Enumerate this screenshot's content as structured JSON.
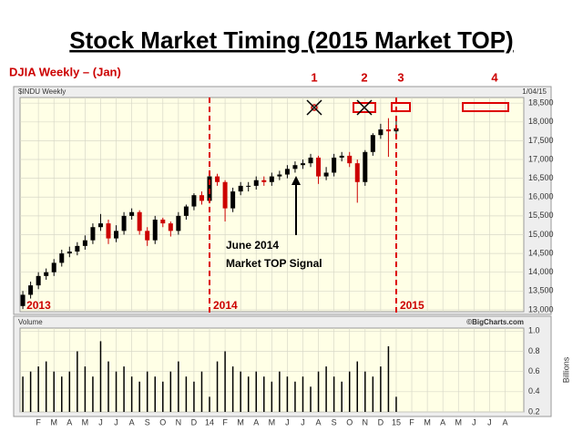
{
  "chart_data": [
    {
      "type": "candlestick",
      "title": "Stock Market Timing (2015 Market TOP)",
      "subtitle": "DJIA Weekly – (Jan)",
      "symbol": "$INDU Weekly",
      "date": "1/04/15",
      "signals": [
        "1",
        "2",
        "3",
        "4"
      ],
      "annotation": [
        "June 2014",
        "Market TOP Signal"
      ],
      "year_labels": [
        {
          "value": 0,
          "label": "2013"
        },
        {
          "value": 12,
          "label": "2014"
        },
        {
          "value": 24,
          "label": "2015"
        }
      ],
      "dashed_lines": [
        12,
        24
      ],
      "up_color": "#000000",
      "down_color": "#cc0000",
      "line_color": "#dd0000",
      "x": [
        0,
        0.5,
        1,
        1.5,
        2,
        2.5,
        3,
        3.5,
        4,
        4.5,
        5,
        5.5,
        6,
        6.5,
        7,
        7.5,
        8,
        8.5,
        9,
        9.5,
        10,
        10.5,
        11,
        11.5,
        12,
        12.5,
        13,
        13.5,
        14,
        14.5,
        15,
        15.5,
        16,
        16.5,
        17,
        17.5,
        18,
        18.5,
        19,
        19.5,
        20,
        20.5,
        21,
        21.5,
        22,
        22.5,
        23,
        23.5,
        24
      ],
      "open": [
        13100,
        13400,
        13650,
        13900,
        14000,
        14250,
        14500,
        14550,
        14700,
        14850,
        15200,
        15300,
        14900,
        15100,
        15500,
        15600,
        15100,
        14850,
        15400,
        15300,
        15100,
        15500,
        15750,
        16050,
        15900,
        16550,
        16400,
        15700,
        16150,
        16300,
        16300,
        16450,
        16400,
        16550,
        16600,
        16750,
        16850,
        16900,
        17050,
        16550,
        16650,
        17050,
        17100,
        16900,
        16400,
        17200,
        17650,
        17800,
        17750
      ],
      "high": [
        13500,
        13750,
        14000,
        14100,
        14350,
        14600,
        14680,
        14800,
        14980,
        15300,
        15550,
        15400,
        15250,
        15600,
        15700,
        15650,
        15200,
        15500,
        15450,
        15350,
        15600,
        15800,
        16100,
        16150,
        16600,
        16620,
        16450,
        16250,
        16400,
        16400,
        16550,
        16550,
        16650,
        16700,
        16850,
        16950,
        17000,
        17150,
        17100,
        16800,
        17150,
        17200,
        17200,
        17000,
        17250,
        17700,
        17950,
        18100,
        18050
      ],
      "low": [
        13020,
        13300,
        13550,
        13800,
        13900,
        14150,
        14400,
        14450,
        14600,
        14750,
        15100,
        14750,
        14800,
        15000,
        15400,
        15000,
        14700,
        14750,
        15200,
        14950,
        15000,
        15400,
        15650,
        15800,
        15850,
        16300,
        15350,
        15600,
        16050,
        16150,
        16200,
        16300,
        16300,
        16450,
        16500,
        16650,
        16750,
        16800,
        16350,
        16450,
        16550,
        16950,
        16800,
        15850,
        16300,
        17100,
        17550,
        17070,
        17650
      ],
      "close": [
        13400,
        13650,
        13900,
        14000,
        14250,
        14500,
        14550,
        14700,
        14850,
        15200,
        15300,
        14900,
        15100,
        15500,
        15600,
        15100,
        14850,
        15400,
        15300,
        15100,
        15500,
        15750,
        16050,
        15900,
        16550,
        16400,
        15700,
        16150,
        16300,
        16300,
        16450,
        16400,
        16550,
        16600,
        16750,
        16850,
        16900,
        17050,
        16550,
        16650,
        17050,
        17100,
        16900,
        16400,
        17200,
        17650,
        17800,
        17750,
        17830
      ],
      "xlim": [
        -0.18,
        32.2
      ],
      "ylim": [
        12950,
        18650
      ],
      "yticks": [
        {
          "value": 13000,
          "label": "13,000"
        },
        {
          "value": 13500,
          "label": "13,500"
        },
        {
          "value": 14000,
          "label": "14,000"
        },
        {
          "value": 14500,
          "label": "14,500"
        },
        {
          "value": 15000,
          "label": "15,000"
        },
        {
          "value": 15500,
          "label": "15,500"
        },
        {
          "value": 16000,
          "label": "16,000"
        },
        {
          "value": 16500,
          "label": "16,500"
        },
        {
          "value": 17000,
          "label": "17,000"
        },
        {
          "value": 17500,
          "label": "17,500"
        },
        {
          "value": 18000,
          "label": "18,000"
        },
        {
          "value": 18500,
          "label": "18,500"
        }
      ],
      "grid": true
    },
    {
      "type": "bar",
      "label": "Volume",
      "credit": "©BigCharts.com",
      "ylabel": "Billions",
      "color": "#000000",
      "values": [
        0.55,
        0.6,
        0.65,
        0.7,
        0.6,
        0.55,
        0.6,
        0.8,
        0.65,
        0.55,
        0.9,
        0.7,
        0.6,
        0.65,
        0.55,
        0.5,
        0.6,
        0.55,
        0.5,
        0.6,
        0.7,
        0.55,
        0.5,
        0.6,
        0.35,
        0.7,
        0.8,
        0.65,
        0.6,
        0.55,
        0.6,
        0.55,
        0.5,
        0.6,
        0.55,
        0.5,
        0.55,
        0.45,
        0.6,
        0.65,
        0.55,
        0.5,
        0.6,
        0.7,
        0.6,
        0.55,
        0.65,
        0.85,
        0.35
      ],
      "xlim": [
        -0.18,
        32.2
      ],
      "ylim": [
        0.2,
        1.03
      ],
      "yticks": [
        0.2,
        0.4,
        0.6,
        0.8,
        {
          "value": 1,
          "label": "1.0"
        }
      ],
      "xticks": [
        {
          "value": 1,
          "label": "F"
        },
        {
          "value": 2,
          "label": "M"
        },
        {
          "value": 3,
          "label": "A"
        },
        {
          "value": 4,
          "label": "M"
        },
        {
          "value": 5,
          "label": "J"
        },
        {
          "value": 6,
          "label": "J"
        },
        {
          "value": 7,
          "label": "A"
        },
        {
          "value": 8,
          "label": "S"
        },
        {
          "value": 9,
          "label": "O"
        },
        {
          "value": 10,
          "label": "N"
        },
        {
          "value": 11,
          "label": "D"
        },
        {
          "value": 12,
          "label": "14"
        },
        {
          "value": 13,
          "label": "F"
        },
        {
          "value": 14,
          "label": "M"
        },
        {
          "value": 15,
          "label": "A"
        },
        {
          "value": 16,
          "label": "M"
        },
        {
          "value": 17,
          "label": "J"
        },
        {
          "value": 18,
          "label": "J"
        },
        {
          "value": 19,
          "label": "A"
        },
        {
          "value": 20,
          "label": "S"
        },
        {
          "value": 21,
          "label": "O"
        },
        {
          "value": 22,
          "label": "N"
        },
        {
          "value": 23,
          "label": "D"
        },
        {
          "value": 24,
          "label": "15"
        },
        {
          "value": 25,
          "label": "F"
        },
        {
          "value": 26,
          "label": "M"
        },
        {
          "value": 27,
          "label": "A"
        },
        {
          "value": 28,
          "label": "M"
        },
        {
          "value": 29,
          "label": "J"
        },
        {
          "value": 30,
          "label": "J"
        },
        {
          "value": 31,
          "label": "A"
        }
      ],
      "grid": true
    }
  ]
}
